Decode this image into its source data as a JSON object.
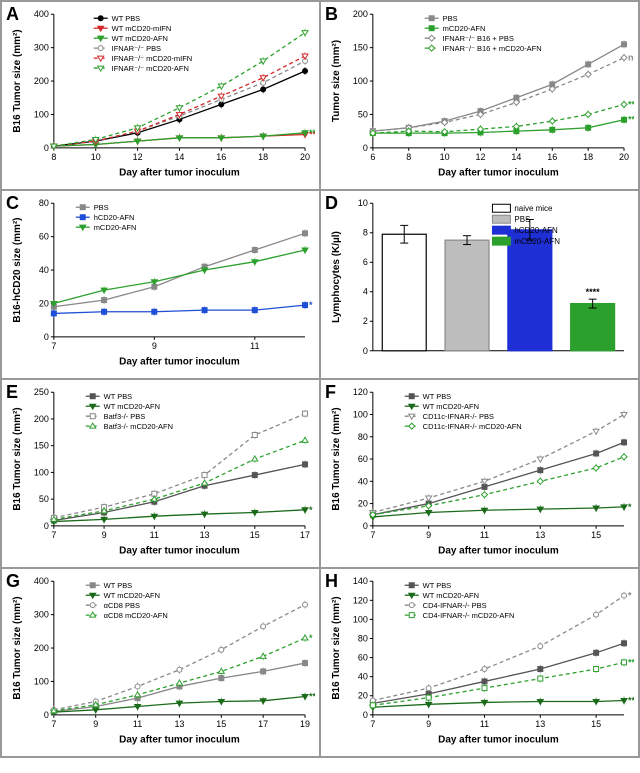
{
  "panelA": {
    "label": "A",
    "ylabel": "B16 Tumor size (mm²)",
    "xlabel": "Day after tumor inoculum",
    "ylim": [
      0,
      400
    ],
    "ytick_step": 100,
    "xlim": [
      8,
      20
    ],
    "xtick_step": 2,
    "series": [
      {
        "name": "WT PBS",
        "color": "#000000",
        "dash": "none",
        "marker": "circle",
        "fill": true,
        "x": [
          8,
          10,
          12,
          14,
          16,
          18,
          20
        ],
        "y": [
          5,
          20,
          45,
          85,
          130,
          175,
          230
        ]
      },
      {
        "name": "WT mCD20-mIFN",
        "color": "#d62728",
        "dash": "none",
        "marker": "triangle-down",
        "fill": true,
        "x": [
          8,
          10,
          12,
          14,
          16,
          18,
          20
        ],
        "y": [
          5,
          10,
          20,
          30,
          30,
          35,
          40
        ],
        "sig": "***"
      },
      {
        "name": "WT mCD20-AFN",
        "color": "#2ca02c",
        "dash": "none",
        "marker": "triangle-down",
        "fill": true,
        "x": [
          8,
          10,
          12,
          14,
          16,
          18,
          20
        ],
        "y": [
          5,
          10,
          20,
          30,
          30,
          35,
          45
        ],
        "sig": "**"
      },
      {
        "name": "IFNAR⁻/⁻ PBS",
        "color": "#888888",
        "dash": "4,3",
        "marker": "circle",
        "fill": false,
        "x": [
          8,
          10,
          12,
          14,
          16,
          18,
          20
        ],
        "y": [
          5,
          20,
          50,
          95,
          145,
          195,
          260
        ]
      },
      {
        "name": "IFNAR⁻/⁻ mCD20-mIFN",
        "color": "#d62728",
        "dash": "4,3",
        "marker": "triangle-down",
        "fill": false,
        "x": [
          8,
          10,
          12,
          14,
          16,
          18,
          20
        ],
        "y": [
          5,
          20,
          50,
          100,
          155,
          210,
          275
        ]
      },
      {
        "name": "IFNAR⁻/⁻ mCD20-AFN",
        "color": "#2ca02c",
        "dash": "4,3",
        "marker": "triangle-down",
        "fill": false,
        "x": [
          8,
          10,
          12,
          14,
          16,
          18,
          20
        ],
        "y": [
          5,
          25,
          60,
          120,
          185,
          260,
          345
        ]
      }
    ]
  },
  "panelB": {
    "label": "B",
    "ylabel": "Tumor size (mm²)",
    "xlabel": "Day after tumor inoculum",
    "ylim": [
      0,
      200
    ],
    "ytick_step": 50,
    "xlim": [
      6,
      20
    ],
    "xtick_step": 2,
    "series": [
      {
        "name": "PBS",
        "color": "#888888",
        "dash": "none",
        "marker": "square",
        "fill": true,
        "x": [
          6,
          8,
          10,
          12,
          14,
          16,
          18,
          20
        ],
        "y": [
          25,
          30,
          40,
          55,
          75,
          95,
          125,
          155
        ]
      },
      {
        "name": "mCD20-AFN",
        "color": "#2ca02c",
        "dash": "none",
        "marker": "square",
        "fill": true,
        "x": [
          6,
          8,
          10,
          12,
          14,
          16,
          18,
          20
        ],
        "y": [
          22,
          22,
          22,
          23,
          25,
          27,
          30,
          42
        ],
        "sig": "***"
      },
      {
        "name": "IFNAR⁻/⁻ B16 + PBS",
        "color": "#888888",
        "dash": "4,3",
        "marker": "diamond",
        "fill": false,
        "x": [
          6,
          8,
          10,
          12,
          14,
          16,
          18,
          20
        ],
        "y": [
          25,
          30,
          38,
          50,
          68,
          88,
          110,
          135
        ],
        "sig": "ns"
      },
      {
        "name": "IFNAR⁻/⁻ B16 + mCD20-AFN",
        "color": "#2ca02c",
        "dash": "4,3",
        "marker": "diamond",
        "fill": false,
        "x": [
          6,
          8,
          10,
          12,
          14,
          16,
          18,
          20
        ],
        "y": [
          22,
          25,
          24,
          28,
          32,
          40,
          50,
          65
        ],
        "sig": "**"
      }
    ]
  },
  "panelC": {
    "label": "C",
    "ylabel": "B16-hCD20 size (mm²)",
    "xlabel": "Day after tumor inoculum",
    "ylim": [
      0,
      80
    ],
    "ytick_step": 20,
    "xlim": [
      7,
      12
    ],
    "xtick_step": 2,
    "series": [
      {
        "name": "PBS",
        "color": "#888888",
        "dash": "none",
        "marker": "square",
        "fill": true,
        "x": [
          7,
          8,
          9,
          10,
          11,
          12
        ],
        "y": [
          18,
          22,
          30,
          42,
          52,
          62
        ]
      },
      {
        "name": "hCD20-AFN",
        "color": "#1f4fd6",
        "dash": "none",
        "marker": "square",
        "fill": true,
        "x": [
          7,
          8,
          9,
          10,
          11,
          12
        ],
        "y": [
          14,
          15,
          15,
          16,
          16,
          19
        ],
        "sig": "*"
      },
      {
        "name": "mCD20-AFN",
        "color": "#2ca02c",
        "dash": "none",
        "marker": "triangle-down",
        "fill": true,
        "x": [
          7,
          8,
          9,
          10,
          11,
          12
        ],
        "y": [
          20,
          28,
          33,
          40,
          45,
          52
        ]
      }
    ]
  },
  "panelD": {
    "label": "D",
    "ylabel": "Lymphocytes (K/µl)",
    "ylim": [
      0,
      10
    ],
    "ytick_step": 2,
    "bars": [
      {
        "name": "naive mice",
        "color": "#ffffff",
        "border": "#000",
        "value": 7.9,
        "err": 0.6
      },
      {
        "name": "PBS",
        "color": "#bdbdbd",
        "border": "#888",
        "value": 7.5,
        "err": 0.3
      },
      {
        "name": "hCD20-AFN",
        "color": "#1f2fd6",
        "border": "#1f2fd6",
        "value": 8.2,
        "err": 0.7
      },
      {
        "name": "mCD20-AFN",
        "color": "#2ca02c",
        "border": "#2ca02c",
        "value": 3.2,
        "err": 0.3,
        "sig": "****"
      }
    ]
  },
  "panelE": {
    "label": "E",
    "ylabel": "B16 Tumor size (mm²)",
    "xlabel": "Day after tumor inoculum",
    "ylim": [
      0,
      250
    ],
    "ytick_step": 50,
    "xlim": [
      7,
      17
    ],
    "xtick_step": 2,
    "series": [
      {
        "name": "WT PBS",
        "color": "#555555",
        "dash": "none",
        "marker": "square",
        "fill": true,
        "x": [
          7,
          9,
          11,
          13,
          15,
          17
        ],
        "y": [
          10,
          25,
          45,
          75,
          95,
          115
        ]
      },
      {
        "name": "WT mCD20-AFN",
        "color": "#1b6b1b",
        "dash": "none",
        "marker": "triangle-down",
        "fill": true,
        "x": [
          7,
          9,
          11,
          13,
          15,
          17
        ],
        "y": [
          8,
          12,
          18,
          22,
          25,
          30
        ],
        "sig": "*"
      },
      {
        "name": "Batf3-/- PBS",
        "color": "#888888",
        "dash": "4,3",
        "marker": "square",
        "fill": false,
        "x": [
          7,
          9,
          11,
          13,
          15,
          17
        ],
        "y": [
          15,
          35,
          60,
          95,
          170,
          210
        ]
      },
      {
        "name": "Batf3-/- mCD20-AFN",
        "color": "#2ca02c",
        "dash": "4,3",
        "marker": "triangle",
        "fill": false,
        "x": [
          7,
          9,
          11,
          13,
          15,
          17
        ],
        "y": [
          12,
          28,
          50,
          80,
          125,
          160
        ]
      }
    ]
  },
  "panelF": {
    "label": "F",
    "ylabel": "B16 Tumor size (mm²)",
    "xlabel": "Day after tumor inoculum",
    "ylim": [
      0,
      120
    ],
    "ytick_step": 20,
    "xlim": [
      7,
      16
    ],
    "xtick_step": 2,
    "series": [
      {
        "name": "WT PBS",
        "color": "#555555",
        "dash": "none",
        "marker": "square",
        "fill": true,
        "x": [
          7,
          9,
          11,
          13,
          15,
          16
        ],
        "y": [
          10,
          20,
          35,
          50,
          65,
          75
        ]
      },
      {
        "name": "WT mCD20-AFN",
        "color": "#1b6b1b",
        "dash": "none",
        "marker": "triangle-down",
        "fill": true,
        "x": [
          7,
          9,
          11,
          13,
          15,
          16
        ],
        "y": [
          8,
          12,
          14,
          15,
          16,
          17
        ],
        "sig": "*"
      },
      {
        "name": "CD11c-IFNAR-/- PBS",
        "color": "#888888",
        "dash": "4,3",
        "marker": "triangle-down",
        "fill": false,
        "x": [
          7,
          9,
          11,
          13,
          15,
          16
        ],
        "y": [
          12,
          25,
          40,
          60,
          85,
          100
        ]
      },
      {
        "name": "CD11c-IFNAR-/- mCD20-AFN",
        "color": "#2ca02c",
        "dash": "4,3",
        "marker": "diamond",
        "fill": false,
        "x": [
          7,
          9,
          11,
          13,
          15,
          16
        ],
        "y": [
          10,
          18,
          28,
          40,
          52,
          62
        ]
      }
    ]
  },
  "panelG": {
    "label": "G",
    "ylabel": "B16 Tumor size (mm²)",
    "xlabel": "Day after tumor inoculum",
    "ylim": [
      0,
      400
    ],
    "ytick_step": 100,
    "xlim": [
      7,
      19
    ],
    "xtick_step": 2,
    "series": [
      {
        "name": "WT PBS",
        "color": "#888888",
        "dash": "none",
        "marker": "square",
        "fill": true,
        "x": [
          7,
          9,
          11,
          13,
          15,
          17,
          19
        ],
        "y": [
          10,
          25,
          50,
          85,
          110,
          130,
          155
        ]
      },
      {
        "name": "WT mCD20-AFN",
        "color": "#1b6b1b",
        "dash": "none",
        "marker": "triangle-down",
        "fill": true,
        "x": [
          7,
          9,
          11,
          13,
          15,
          17,
          19
        ],
        "y": [
          8,
          15,
          25,
          35,
          40,
          42,
          55
        ],
        "sig": "****"
      },
      {
        "name": "αCD8 PBS",
        "color": "#888888",
        "dash": "4,3",
        "marker": "circle",
        "fill": false,
        "x": [
          7,
          9,
          11,
          13,
          15,
          17,
          19
        ],
        "y": [
          15,
          40,
          85,
          135,
          195,
          265,
          330
        ]
      },
      {
        "name": "αCD8 mCD20-AFN",
        "color": "#2ca02c",
        "dash": "4,3",
        "marker": "triangle",
        "fill": false,
        "x": [
          7,
          9,
          11,
          13,
          15,
          17,
          19
        ],
        "y": [
          12,
          30,
          60,
          95,
          130,
          175,
          230
        ],
        "sig": "*"
      }
    ]
  },
  "panelH": {
    "label": "H",
    "ylabel": "B16 Tumor size (mm²)",
    "xlabel": "Day after tumor inoculum",
    "ylim": [
      0,
      140
    ],
    "ytick_step": 20,
    "xlim": [
      7,
      16
    ],
    "xtick_step": 2,
    "series": [
      {
        "name": "WT PBS",
        "color": "#555555",
        "dash": "none",
        "marker": "square",
        "fill": true,
        "x": [
          7,
          9,
          11,
          13,
          15,
          16
        ],
        "y": [
          12,
          22,
          35,
          48,
          65,
          75
        ]
      },
      {
        "name": "WT mCD20-AFN",
        "color": "#1b6b1b",
        "dash": "none",
        "marker": "triangle-down",
        "fill": true,
        "x": [
          7,
          9,
          11,
          13,
          15,
          16
        ],
        "y": [
          8,
          11,
          13,
          14,
          14,
          15
        ],
        "sig": "**"
      },
      {
        "name": "CD4-IFNAR-/- PBS",
        "color": "#888888",
        "dash": "4,3",
        "marker": "circle",
        "fill": false,
        "x": [
          7,
          9,
          11,
          13,
          15,
          16
        ],
        "y": [
          15,
          28,
          48,
          72,
          105,
          125
        ],
        "sig": "*"
      },
      {
        "name": "CD4-IFNAR-/- mCD20-AFN",
        "color": "#2ca02c",
        "dash": "4,3",
        "marker": "square",
        "fill": false,
        "x": [
          7,
          9,
          11,
          13,
          15,
          16
        ],
        "y": [
          10,
          18,
          28,
          38,
          48,
          55
        ],
        "sig": "**"
      }
    ]
  }
}
